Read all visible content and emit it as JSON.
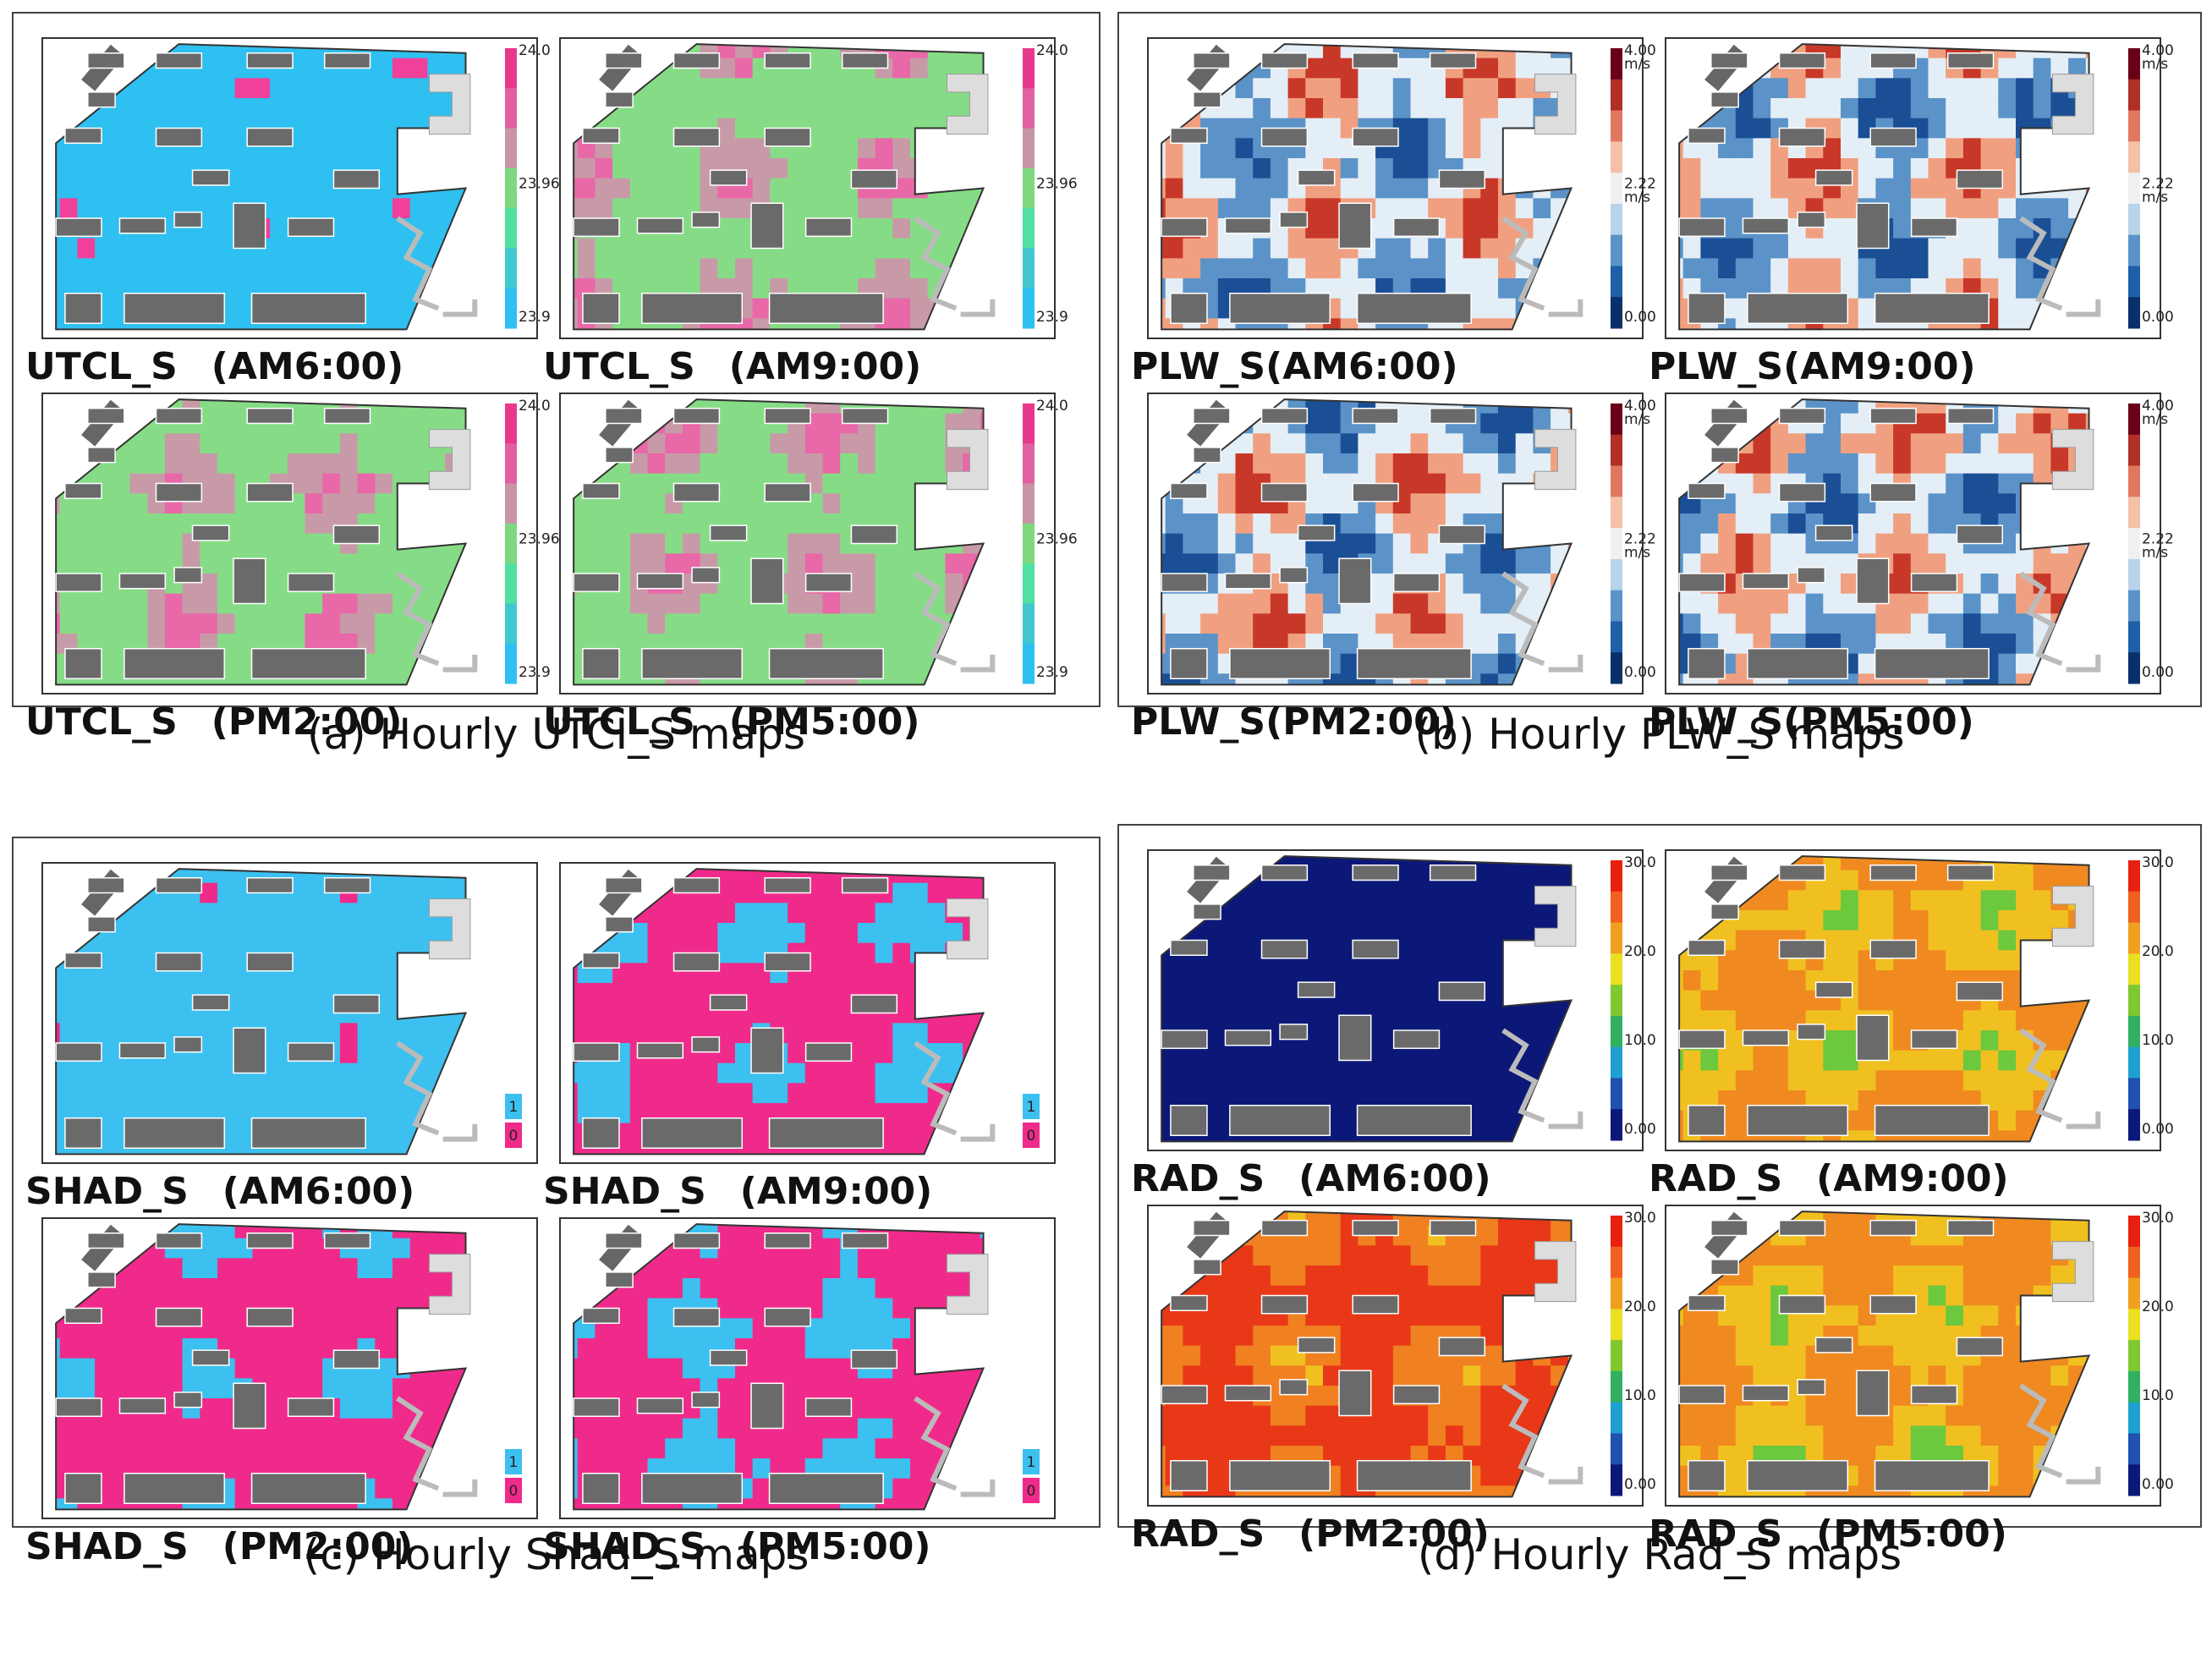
{
  "panels": [
    {
      "caption": "(a) Hourly UTCI_S maps",
      "maps": [
        {
          "variable": "UTCL_S",
          "time": "(AM6:00)"
        },
        {
          "variable": "UTCL_S",
          "time": "(AM9:00)"
        },
        {
          "variable": "UTCL_S",
          "time": "(PM2:00)"
        },
        {
          "variable": "UTCL_S",
          "time": "(PM5:00)"
        }
      ],
      "legend": [
        {
          "value": "24.0"
        },
        {
          "value": "23.96"
        },
        {
          "value": "23.9"
        }
      ]
    },
    {
      "caption": "(b) Hourly PLW_S maps",
      "maps": [
        {
          "variable": "PLW_S",
          "time": "(AM6:00)"
        },
        {
          "variable": "PLW_S",
          "time": "(AM9:00)"
        },
        {
          "variable": "PLW_S",
          "time": "(PM2:00)"
        },
        {
          "variable": "PLW_S",
          "time": "(PM5:00)"
        }
      ],
      "legend": [
        {
          "value": "4.00",
          "unit": "m/s"
        },
        {
          "value": "2.22",
          "unit": "m/s"
        },
        {
          "value": "0.00"
        }
      ]
    },
    {
      "caption": "(c) Hourly Shad_S maps",
      "maps": [
        {
          "variable": "SHAD_S",
          "time": "(AM6:00)"
        },
        {
          "variable": "SHAD_S",
          "time": "(AM9:00)"
        },
        {
          "variable": "SHAD_S",
          "time": "(PM2:00)"
        },
        {
          "variable": "SHAD_S",
          "time": "(PM5:00)"
        }
      ],
      "legend": [
        {
          "value": "1"
        },
        {
          "value": "0"
        }
      ]
    },
    {
      "caption": "(d) Hourly Rad_S maps",
      "maps": [
        {
          "variable": "RAD_S",
          "time": "(AM6:00)"
        },
        {
          "variable": "RAD_S",
          "time": "(AM9:00)"
        },
        {
          "variable": "RAD_S",
          "time": "(PM2:00)"
        },
        {
          "variable": "RAD_S",
          "time": "(PM5:00)"
        }
      ],
      "legend": [
        {
          "value": "30.0"
        },
        {
          "value": "20.0"
        },
        {
          "value": "10.0"
        },
        {
          "value": "0.00"
        }
      ]
    }
  ]
}
